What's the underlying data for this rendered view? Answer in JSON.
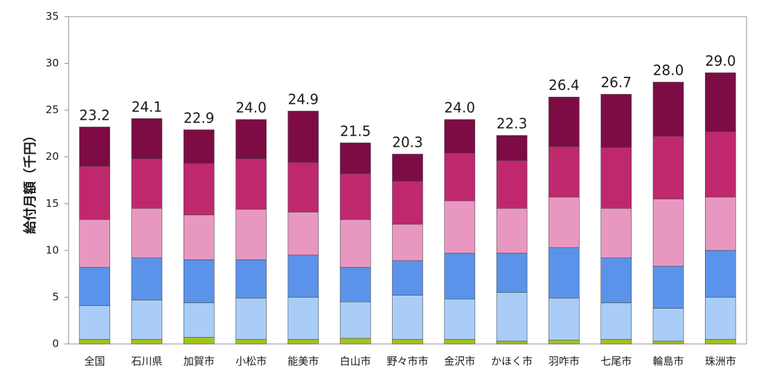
{
  "chart_data": {
    "type": "bar",
    "stacked": true,
    "title": "",
    "xlabel": "",
    "ylabel": "給付月額（千円）",
    "ylim": [
      0,
      35
    ],
    "yticks": [
      0,
      5,
      10,
      15,
      20,
      25,
      30,
      35
    ],
    "grid": false,
    "legend": "none",
    "categories": [
      "全国",
      "石川県",
      "加賀市",
      "小松市",
      "能美市",
      "白山市",
      "野々市市",
      "金沢市",
      "かほく市",
      "羽咋市",
      "七尾市",
      "輪島市",
      "珠洲市"
    ],
    "totals": [
      "23.2",
      "24.1",
      "22.9",
      "24.0",
      "24.9",
      "21.5",
      "20.3",
      "24.0",
      "22.3",
      "26.4",
      "26.7",
      "28.0",
      "29.0"
    ],
    "series": [
      {
        "color": "#a5c21b",
        "values": [
          0.5,
          0.5,
          0.7,
          0.5,
          0.5,
          0.6,
          0.5,
          0.5,
          0.3,
          0.4,
          0.5,
          0.3,
          0.5
        ]
      },
      {
        "color": "#a9cdf7",
        "values": [
          3.6,
          4.2,
          3.7,
          4.4,
          4.5,
          3.9,
          4.7,
          4.3,
          5.2,
          4.5,
          3.9,
          3.5,
          4.5
        ]
      },
      {
        "color": "#5b93ea",
        "values": [
          4.1,
          4.5,
          4.6,
          4.1,
          4.5,
          3.7,
          3.7,
          4.9,
          4.2,
          5.4,
          4.8,
          4.5,
          5.0
        ]
      },
      {
        "color": "#e898c0",
        "values": [
          5.1,
          5.3,
          4.8,
          5.4,
          4.6,
          5.1,
          3.9,
          5.6,
          4.8,
          5.4,
          5.3,
          7.2,
          5.7
        ]
      },
      {
        "color": "#c0286e",
        "values": [
          5.7,
          5.3,
          5.5,
          5.4,
          5.3,
          4.9,
          4.6,
          5.1,
          5.1,
          5.4,
          6.5,
          6.7,
          7.0
        ]
      },
      {
        "color": "#7d0c44",
        "values": [
          4.2,
          4.3,
          3.6,
          4.2,
          5.5,
          3.3,
          2.9,
          3.6,
          2.7,
          5.3,
          5.7,
          5.8,
          6.3
        ]
      }
    ]
  }
}
